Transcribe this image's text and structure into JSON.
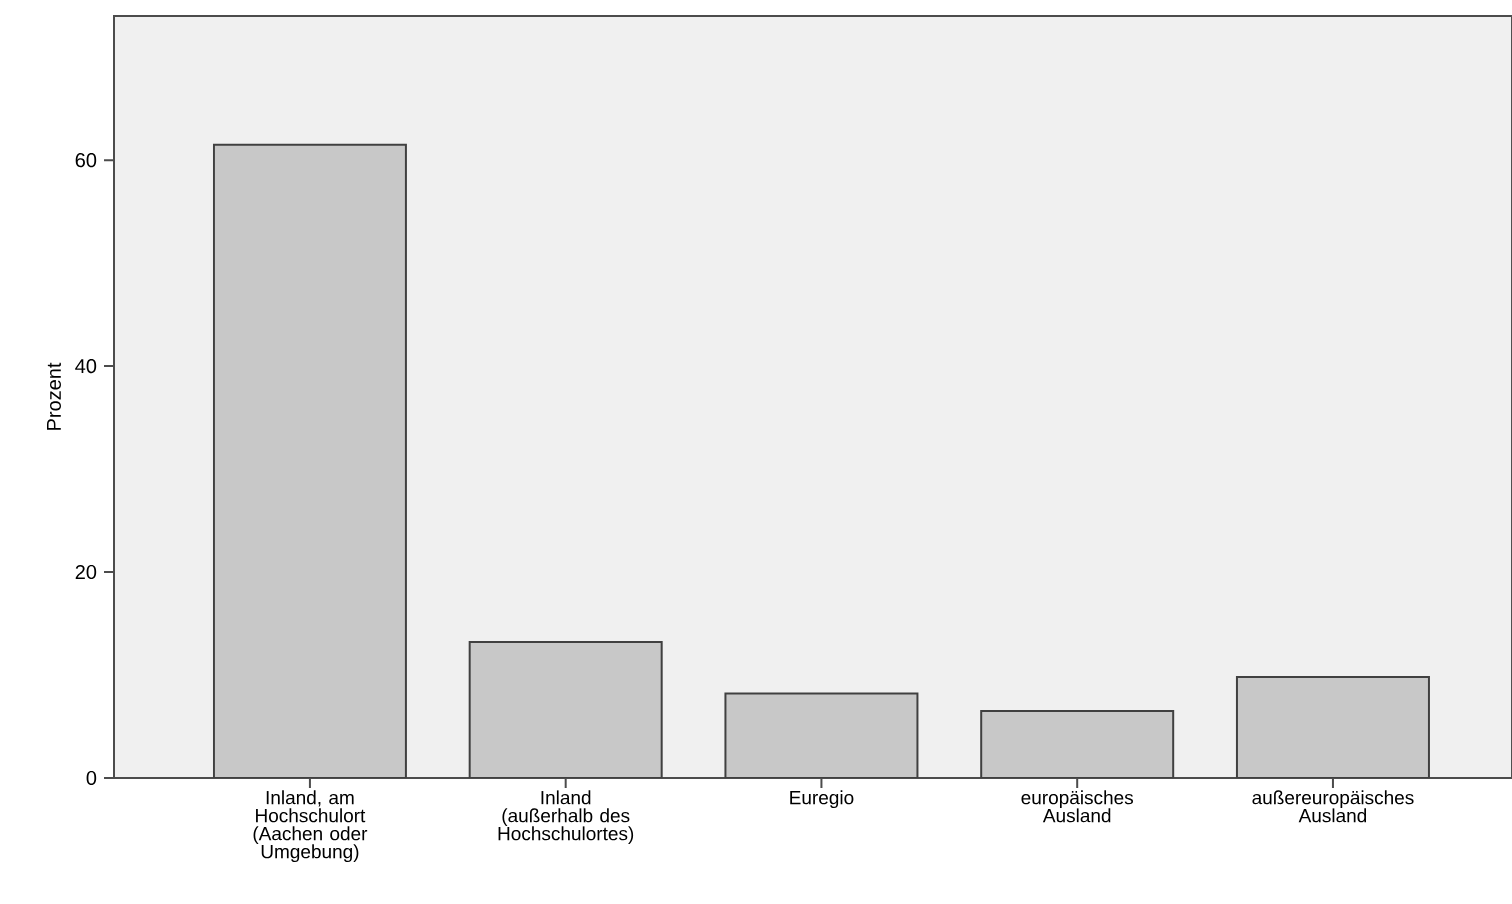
{
  "chart_data": {
    "type": "bar",
    "ylabel": "Prozent",
    "categories": [
      "Inland, am Hochschulort (Aachen oder Umgebung)",
      "Inland (außerhalb des Hochschulortes)",
      "Euregio",
      "europäisches Ausland",
      "außereuropäisches Ausland"
    ],
    "values": [
      61.5,
      13.2,
      8.2,
      6.5,
      9.8
    ],
    "color": "#c8c8c8",
    "ylim": [
      0,
      74
    ],
    "yticks": [
      0,
      20,
      40,
      60
    ],
    "grid": false
  }
}
